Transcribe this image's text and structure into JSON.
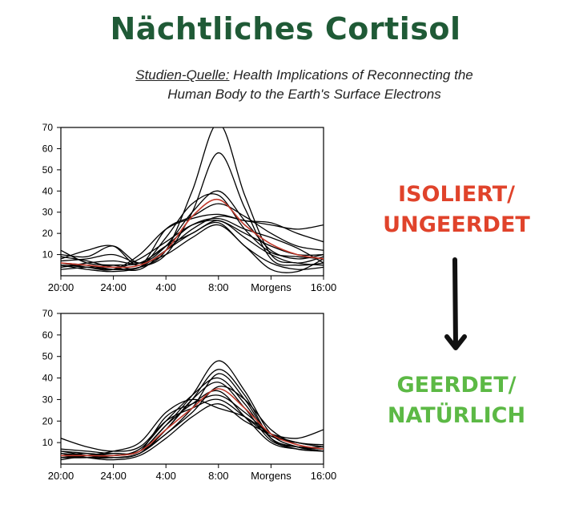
{
  "title": "Nächtliches Cortisol",
  "source": {
    "label": "Studien-Quelle:",
    "line1": "Health Implications of Reconnecting the",
    "line2": "Human Body to the Earth's Surface Electrons"
  },
  "labels": {
    "top_line1": "ISOLIERT/",
    "top_line2": "UNGEERDET",
    "bottom_line1": "GEERDET/",
    "bottom_line2": "NATÜRLICH"
  },
  "colors": {
    "title": "#1f5a36",
    "top_label": "#e0432b",
    "bottom_label": "#5cb945",
    "mean_line": "#c0392b",
    "subject_line": "#000000"
  },
  "chart_data": [
    {
      "type": "line",
      "ylim": [
        0,
        70
      ],
      "yticks": [
        10,
        20,
        30,
        40,
        50,
        60,
        70
      ],
      "xlim": [
        0,
        20
      ],
      "xticks": [
        {
          "x": 0,
          "label": "20:00"
        },
        {
          "x": 4,
          "label": "24:00"
        },
        {
          "x": 8,
          "label": "4:00"
        },
        {
          "x": 12,
          "label": "8:00"
        },
        {
          "x": 16,
          "label": "Morgens"
        },
        {
          "x": 20,
          "label": "16:00"
        }
      ],
      "x": [
        0,
        2,
        4,
        6,
        8,
        10,
        12,
        14,
        16,
        18,
        20
      ],
      "series": [
        {
          "values": [
            6,
            5,
            4,
            5,
            12,
            28,
            36,
            24,
            15,
            10,
            8
          ],
          "mean": true
        },
        {
          "values": [
            5,
            4,
            3,
            4,
            12,
            40,
            72,
            38,
            10,
            6,
            5
          ]
        },
        {
          "values": [
            4,
            5,
            3,
            4,
            10,
            30,
            58,
            32,
            8,
            5,
            6
          ]
        },
        {
          "values": [
            10,
            9,
            14,
            6,
            14,
            30,
            40,
            26,
            12,
            8,
            10
          ]
        },
        {
          "values": [
            12,
            6,
            5,
            4,
            18,
            34,
            38,
            22,
            11,
            9,
            8
          ]
        },
        {
          "values": [
            8,
            12,
            14,
            5,
            22,
            28,
            34,
            28,
            20,
            14,
            12
          ]
        },
        {
          "values": [
            6,
            4,
            3,
            10,
            22,
            27,
            29,
            26,
            25,
            20,
            16
          ]
        },
        {
          "values": [
            9,
            7,
            4,
            3,
            12,
            22,
            28,
            26,
            24,
            22,
            24
          ]
        },
        {
          "values": [
            4,
            6,
            7,
            6,
            14,
            20,
            26,
            18,
            10,
            6,
            9
          ]
        },
        {
          "values": [
            5,
            3,
            2,
            4,
            12,
            20,
            25,
            14,
            6,
            3,
            4
          ]
        },
        {
          "values": [
            7,
            8,
            10,
            6,
            10,
            18,
            24,
            14,
            3,
            2,
            8
          ]
        },
        {
          "values": [
            3,
            4,
            5,
            6,
            14,
            24,
            27,
            22,
            18,
            13,
            6
          ]
        },
        {
          "values": [
            6,
            5,
            3,
            8,
            16,
            24,
            26,
            20,
            14,
            10,
            10
          ]
        }
      ]
    },
    {
      "type": "line",
      "ylim": [
        0,
        70
      ],
      "yticks": [
        10,
        20,
        30,
        40,
        50,
        60,
        70
      ],
      "xlim": [
        0,
        20
      ],
      "xticks": [
        {
          "x": 0,
          "label": "20:00"
        },
        {
          "x": 4,
          "label": "24:00"
        },
        {
          "x": 8,
          "label": "4:00"
        },
        {
          "x": 12,
          "label": "8:00"
        },
        {
          "x": 16,
          "label": "Morgens"
        },
        {
          "x": 20,
          "label": "16:00"
        }
      ],
      "x": [
        0,
        2,
        4,
        6,
        8,
        10,
        12,
        14,
        16,
        18,
        20
      ],
      "series": [
        {
          "values": [
            4,
            4,
            4,
            6,
            16,
            26,
            35,
            26,
            14,
            9,
            7
          ],
          "mean": true
        },
        {
          "values": [
            3,
            3,
            4,
            6,
            18,
            32,
            48,
            34,
            14,
            8,
            6
          ]
        },
        {
          "values": [
            5,
            4,
            3,
            5,
            16,
            30,
            44,
            32,
            12,
            7,
            6
          ]
        },
        {
          "values": [
            4,
            5,
            4,
            7,
            20,
            32,
            40,
            28,
            12,
            8,
            7
          ]
        },
        {
          "values": [
            6,
            4,
            3,
            5,
            16,
            30,
            38,
            26,
            11,
            8,
            8
          ]
        },
        {
          "values": [
            3,
            4,
            5,
            6,
            22,
            28,
            32,
            24,
            14,
            10,
            9
          ]
        },
        {
          "values": [
            12,
            8,
            6,
            8,
            20,
            26,
            30,
            22,
            13,
            10,
            8
          ]
        },
        {
          "values": [
            4,
            3,
            3,
            5,
            14,
            24,
            36,
            30,
            16,
            9,
            7
          ]
        },
        {
          "values": [
            7,
            6,
            5,
            6,
            18,
            28,
            34,
            22,
            10,
            7,
            6
          ]
        },
        {
          "values": [
            5,
            3,
            2,
            4,
            12,
            22,
            28,
            20,
            14,
            12,
            16
          ]
        },
        {
          "values": [
            2,
            4,
            6,
            10,
            24,
            30,
            26,
            22,
            14,
            10,
            8
          ]
        },
        {
          "values": [
            6,
            5,
            4,
            6,
            14,
            26,
            42,
            30,
            12,
            8,
            6
          ]
        }
      ]
    }
  ]
}
